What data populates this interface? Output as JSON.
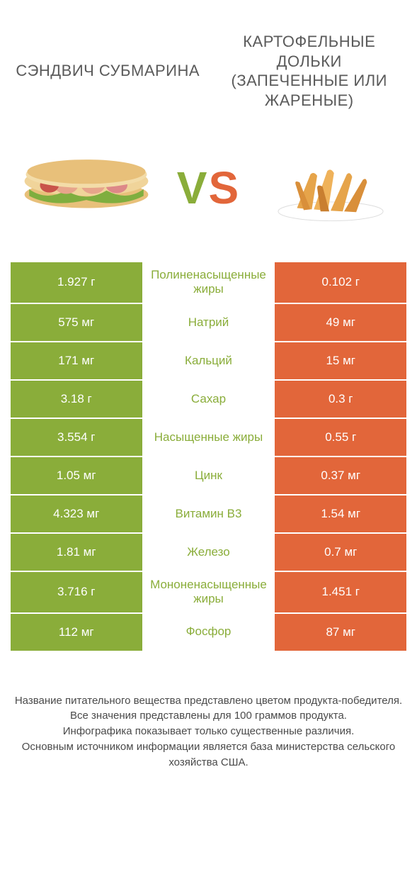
{
  "colors": {
    "left": "#8aad3a",
    "right": "#e2663a",
    "bg": "#ffffff",
    "text": "#4a4a4a"
  },
  "header": {
    "left_title": "СЭНДВИЧ СУБМАРИНА",
    "right_title": "КАРТОФЕЛЬНЫЕ ДОЛЬКИ (ЗАПЕЧЕННЫЕ ИЛИ ЖАРЕНЫЕ)",
    "vs_v": "V",
    "vs_s": "S"
  },
  "rows": [
    {
      "left": "1.927 г",
      "label": "Полиненасыщенные жиры",
      "right": "0.102 г",
      "winner": "left"
    },
    {
      "left": "575 мг",
      "label": "Натрий",
      "right": "49 мг",
      "winner": "left"
    },
    {
      "left": "171 мг",
      "label": "Кальций",
      "right": "15 мг",
      "winner": "left"
    },
    {
      "left": "3.18 г",
      "label": "Сахар",
      "right": "0.3 г",
      "winner": "left"
    },
    {
      "left": "3.554 г",
      "label": "Насыщенные жиры",
      "right": "0.55 г",
      "winner": "left"
    },
    {
      "left": "1.05 мг",
      "label": "Цинк",
      "right": "0.37 мг",
      "winner": "left"
    },
    {
      "left": "4.323 мг",
      "label": "Витамин B3",
      "right": "1.54 мг",
      "winner": "left"
    },
    {
      "left": "1.81 мг",
      "label": "Железо",
      "right": "0.7 мг",
      "winner": "left"
    },
    {
      "left": "3.716 г",
      "label": "Мононенасыщенные жиры",
      "right": "1.451 г",
      "winner": "left"
    },
    {
      "left": "112 мг",
      "label": "Фосфор",
      "right": "87 мг",
      "winner": "left"
    }
  ],
  "footer": {
    "line1": "Название питательного вещества представлено цветом продукта-победителя.",
    "line2": "Все значения представлены для 100 граммов продукта.",
    "line3": "Инфографика показывает только существенные различия.",
    "line4": "Основным источником информации является база министерства сельского хозяйства США."
  }
}
